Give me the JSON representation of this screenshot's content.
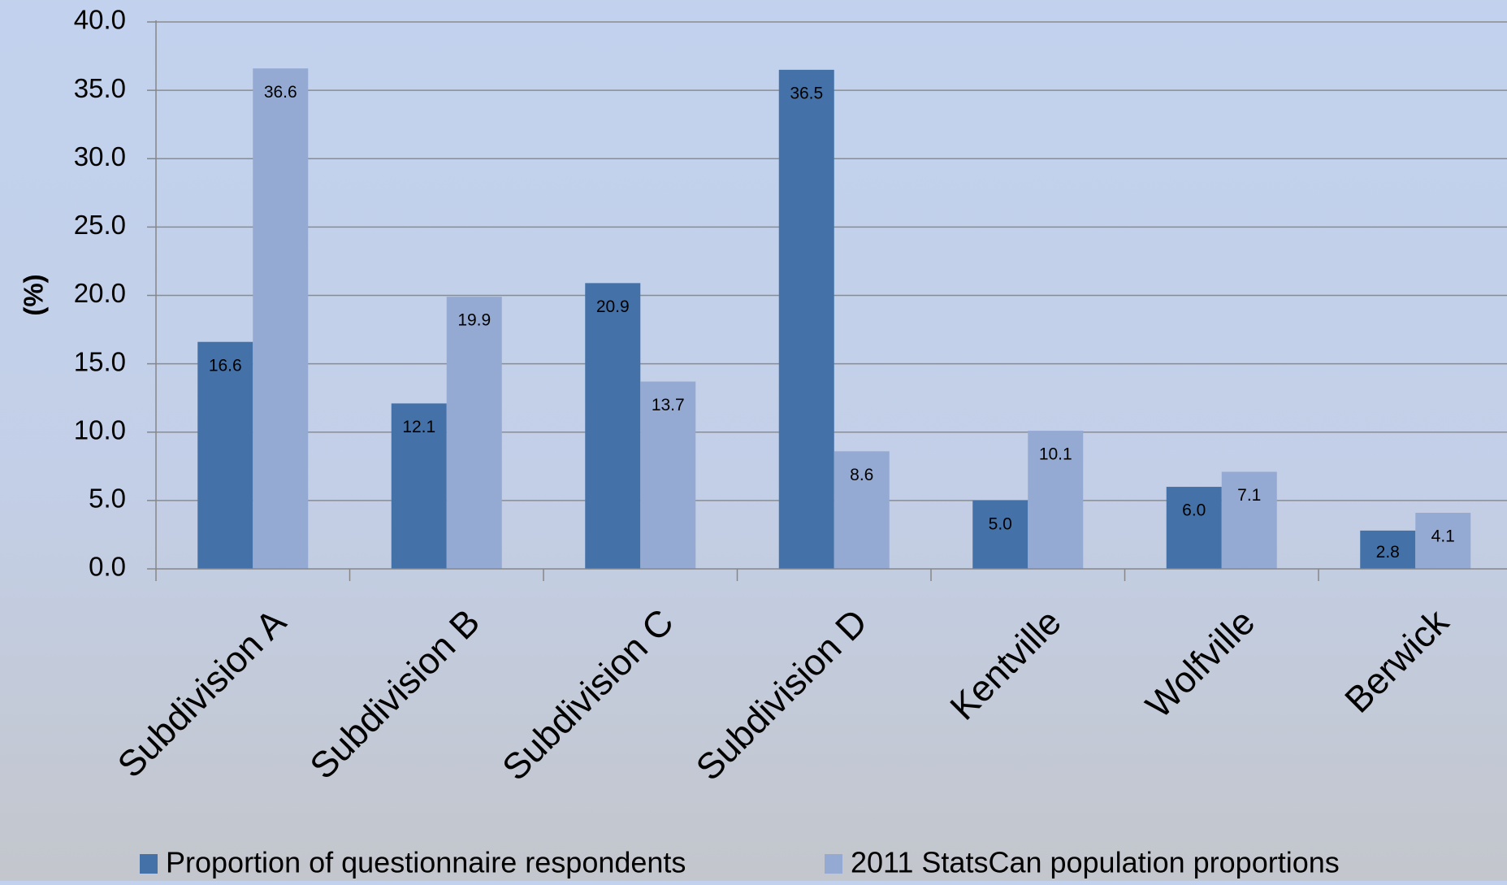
{
  "chart_data": {
    "type": "bar",
    "title": "",
    "xlabel": "",
    "ylabel": "(%)",
    "ylim": [
      0,
      40
    ],
    "yticks": [
      "0.0",
      "5.0",
      "10.0",
      "15.0",
      "20.0",
      "25.0",
      "30.0",
      "35.0",
      "40.0"
    ],
    "grid": true,
    "legend_position": "bottom",
    "categories": [
      "Subdivision A",
      "Subdivision B",
      "Subdivision C",
      "Subdivision D",
      "Kentville",
      "Wolfville",
      "Berwick"
    ],
    "series": [
      {
        "name": "Proportion of questionnaire respondents",
        "color": "#4472a8",
        "values": [
          16.6,
          12.1,
          20.9,
          36.5,
          5.0,
          6.0,
          2.8
        ],
        "labels": [
          "16.6",
          "12.1",
          "20.9",
          "36.5",
          "5.0",
          "6.0",
          "2.8"
        ]
      },
      {
        "name": "2011 StatsCan population proportions",
        "color": "#94aad2",
        "values": [
          36.6,
          19.9,
          13.7,
          8.6,
          10.1,
          7.1,
          4.1
        ],
        "labels": [
          "36.6",
          "19.9",
          "13.7",
          "8.6",
          "10.1",
          "7.1",
          "4.1"
        ]
      }
    ],
    "colors": {
      "gridline": "#8c8c8c",
      "axis": "#868686",
      "text": "#000000"
    }
  }
}
